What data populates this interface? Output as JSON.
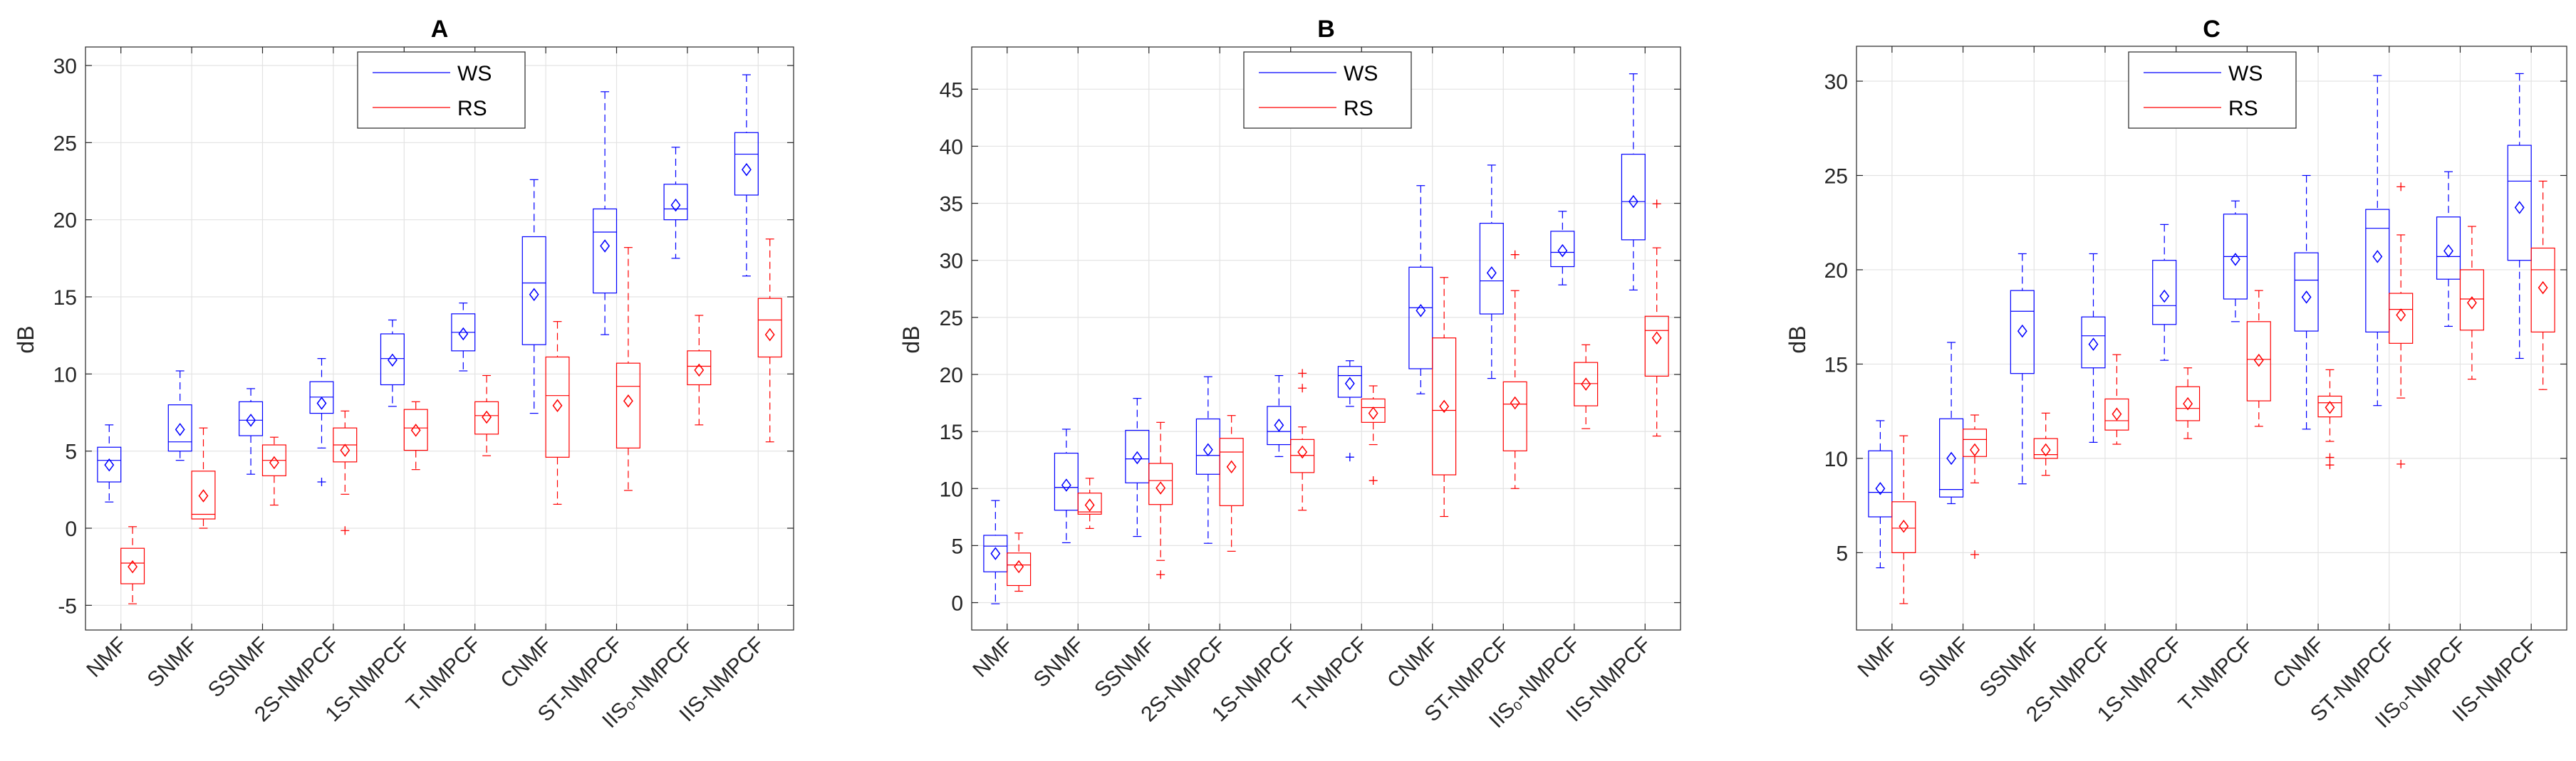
{
  "chart_data": [
    {
      "type": "box",
      "title": "A",
      "ylabel": "dB",
      "ylim": [
        -6.6,
        31.2
      ],
      "yticks": [
        -5,
        0,
        5,
        10,
        15,
        20,
        25,
        30
      ],
      "grid": true,
      "legend": "top-center",
      "categories": [
        "NMF",
        "SNMF",
        "SSNMF",
        "2S-NMPCF",
        "1S-NMPCF",
        "T-NMPCF",
        "CNMF",
        "ST-NMPCF",
        "IIS₀-NMPCF",
        "IIS-NMPCF"
      ],
      "series": [
        {
          "name": "WS",
          "color": "#0000ff",
          "boxes": [
            {
              "min": 1.7,
              "q1": 3.0,
              "median": 4.4,
              "q3": 5.25,
              "max": 6.7,
              "mean": 4.1,
              "outliers": []
            },
            {
              "min": 4.4,
              "q1": 5.0,
              "median": 5.6,
              "q3": 8.0,
              "max": 10.2,
              "mean": 6.4,
              "outliers": []
            },
            {
              "min": 3.5,
              "q1": 6.0,
              "median": 7.0,
              "q3": 8.2,
              "max": 9.05,
              "mean": 7.0,
              "outliers": []
            },
            {
              "min": 5.2,
              "q1": 7.45,
              "median": 8.5,
              "q3": 9.5,
              "max": 11.0,
              "mean": 8.1,
              "outliers": [
                3.0
              ]
            },
            {
              "min": 7.9,
              "q1": 9.3,
              "median": 11.0,
              "q3": 12.6,
              "max": 13.5,
              "mean": 10.9,
              "outliers": []
            },
            {
              "min": 10.2,
              "q1": 11.5,
              "median": 12.7,
              "q3": 13.9,
              "max": 14.6,
              "mean": 12.6,
              "outliers": []
            },
            {
              "min": 7.45,
              "q1": 11.9,
              "median": 15.9,
              "q3": 18.9,
              "max": 22.6,
              "mean": 15.15,
              "outliers": []
            },
            {
              "min": 12.55,
              "q1": 15.25,
              "median": 19.2,
              "q3": 20.7,
              "max": 28.3,
              "mean": 18.3,
              "outliers": []
            },
            {
              "min": 17.5,
              "q1": 20.0,
              "median": 20.7,
              "q3": 22.3,
              "max": 24.7,
              "mean": 20.95,
              "outliers": []
            },
            {
              "min": 16.35,
              "q1": 21.6,
              "median": 24.25,
              "q3": 25.65,
              "max": 29.4,
              "mean": 23.25,
              "outliers": []
            }
          ]
        },
        {
          "name": "RS",
          "color": "#ff0000",
          "boxes": [
            {
              "min": -4.9,
              "q1": -3.6,
              "median": -2.26,
              "q3": -1.3,
              "max": 0.1,
              "mean": -2.5,
              "outliers": []
            },
            {
              "min": 0.0,
              "q1": 0.6,
              "median": 0.9,
              "q3": 3.7,
              "max": 6.5,
              "mean": 2.1,
              "outliers": []
            },
            {
              "min": 1.5,
              "q1": 3.4,
              "median": 4.4,
              "q3": 5.4,
              "max": 5.9,
              "mean": 4.25,
              "outliers": []
            },
            {
              "min": 2.2,
              "q1": 4.3,
              "median": 5.4,
              "q3": 6.5,
              "max": 7.6,
              "mean": 5.05,
              "outliers": [
                -0.15
              ]
            },
            {
              "min": 3.8,
              "q1": 5.05,
              "median": 6.5,
              "q3": 7.7,
              "max": 8.2,
              "mean": 6.35,
              "outliers": []
            },
            {
              "min": 4.7,
              "q1": 6.1,
              "median": 7.3,
              "q3": 8.2,
              "max": 9.9,
              "mean": 7.2,
              "outliers": []
            },
            {
              "min": 1.55,
              "q1": 4.6,
              "median": 8.6,
              "q3": 11.1,
              "max": 13.4,
              "mean": 7.95,
              "outliers": []
            },
            {
              "min": 2.45,
              "q1": 5.2,
              "median": 9.2,
              "q3": 10.7,
              "max": 18.2,
              "mean": 8.25,
              "outliers": []
            },
            {
              "min": 6.7,
              "q1": 9.3,
              "median": 10.5,
              "q3": 11.5,
              "max": 13.8,
              "mean": 10.25,
              "outliers": []
            },
            {
              "min": 5.6,
              "q1": 11.1,
              "median": 13.5,
              "q3": 14.9,
              "max": 18.75,
              "mean": 12.55,
              "outliers": []
            }
          ]
        }
      ]
    },
    {
      "type": "box",
      "title": "B",
      "ylabel": "dB",
      "ylim": [
        -2.4,
        48.7
      ],
      "yticks": [
        0,
        5,
        10,
        15,
        20,
        25,
        30,
        35,
        40,
        45
      ],
      "grid": true,
      "legend": "top-center",
      "categories": [
        "NMF",
        "SNMF",
        "SSNMF",
        "2S-NMPCF",
        "1S-NMPCF",
        "T-NMPCF",
        "CNMF",
        "ST-NMPCF",
        "IIS₀-NMPCF",
        "IIS-NMPCF"
      ],
      "series": [
        {
          "name": "WS",
          "color": "#0000ff",
          "boxes": [
            {
              "min": -0.1,
              "q1": 2.7,
              "median": 4.95,
              "q3": 5.9,
              "max": 8.95,
              "mean": 4.3,
              "outliers": []
            },
            {
              "min": 5.25,
              "q1": 8.1,
              "median": 10.1,
              "q3": 13.1,
              "max": 15.2,
              "mean": 10.3,
              "outliers": []
            },
            {
              "min": 5.8,
              "q1": 10.5,
              "median": 12.6,
              "q3": 15.1,
              "max": 17.9,
              "mean": 12.7,
              "outliers": []
            },
            {
              "min": 5.2,
              "q1": 11.25,
              "median": 12.9,
              "q3": 16.1,
              "max": 19.8,
              "mean": 13.4,
              "outliers": []
            },
            {
              "min": 12.8,
              "q1": 13.85,
              "median": 15.0,
              "q3": 17.2,
              "max": 19.9,
              "mean": 15.55,
              "outliers": []
            },
            {
              "min": 17.2,
              "q1": 18.0,
              "median": 19.9,
              "q3": 20.7,
              "max": 21.2,
              "mean": 19.2,
              "outliers": [
                12.75
              ]
            },
            {
              "min": 18.3,
              "q1": 20.5,
              "median": 25.85,
              "q3": 29.4,
              "max": 36.55,
              "mean": 25.6,
              "outliers": []
            },
            {
              "min": 19.65,
              "q1": 25.3,
              "median": 28.2,
              "q3": 33.25,
              "max": 38.35,
              "mean": 28.9,
              "outliers": []
            },
            {
              "min": 27.85,
              "q1": 29.45,
              "median": 30.7,
              "q3": 32.55,
              "max": 34.3,
              "mean": 30.85,
              "outliers": []
            },
            {
              "min": 27.4,
              "q1": 31.8,
              "median": 35.15,
              "q3": 39.3,
              "max": 46.35,
              "mean": 35.15,
              "outliers": []
            }
          ]
        },
        {
          "name": "RS",
          "color": "#ff0000",
          "boxes": [
            {
              "min": 1.0,
              "q1": 1.5,
              "median": 3.3,
              "q3": 4.35,
              "max": 6.1,
              "mean": 3.15,
              "outliers": []
            },
            {
              "min": 6.5,
              "q1": 7.75,
              "median": 7.95,
              "q3": 9.6,
              "max": 10.9,
              "mean": 8.55,
              "outliers": []
            },
            {
              "min": 3.7,
              "q1": 8.6,
              "median": 10.7,
              "q3": 12.2,
              "max": 15.8,
              "mean": 10.05,
              "outliers": [
                2.45
              ]
            },
            {
              "min": 4.5,
              "q1": 8.5,
              "median": 13.2,
              "q3": 14.4,
              "max": 16.4,
              "mean": 11.9,
              "outliers": []
            },
            {
              "min": 8.1,
              "q1": 11.4,
              "median": 12.9,
              "q3": 14.3,
              "max": 15.4,
              "mean": 13.2,
              "outliers": [
                20.1,
                18.8
              ]
            },
            {
              "min": 13.85,
              "q1": 15.8,
              "median": 17.1,
              "q3": 17.85,
              "max": 19.0,
              "mean": 16.6,
              "outliers": [
                10.7
              ]
            },
            {
              "min": 7.55,
              "q1": 11.2,
              "median": 16.85,
              "q3": 23.2,
              "max": 28.5,
              "mean": 17.2,
              "outliers": []
            },
            {
              "min": 10.0,
              "q1": 13.3,
              "median": 17.4,
              "q3": 19.35,
              "max": 27.35,
              "mean": 17.5,
              "outliers": [
                30.5
              ]
            },
            {
              "min": 15.25,
              "q1": 17.25,
              "median": 19.2,
              "q3": 21.05,
              "max": 22.6,
              "mean": 19.15,
              "outliers": []
            },
            {
              "min": 14.6,
              "q1": 19.85,
              "median": 23.85,
              "q3": 25.1,
              "max": 31.1,
              "mean": 23.2,
              "outliers": [
                34.95
              ]
            }
          ]
        }
      ]
    },
    {
      "type": "box",
      "title": "C",
      "ylabel": "dB",
      "ylim": [
        0.9,
        31.85
      ],
      "yticks": [
        5,
        10,
        15,
        20,
        25,
        30
      ],
      "grid": true,
      "legend": "top-center",
      "categories": [
        "NMF",
        "SNMF",
        "SSNMF",
        "2S-NMPCF",
        "1S-NMPCF",
        "T-NMPCF",
        "CNMF",
        "ST-NMPCF",
        "IIS₀-NMPCF",
        "IIS-NMPCF"
      ],
      "series": [
        {
          "name": "WS",
          "color": "#0000ff",
          "boxes": [
            {
              "min": 4.2,
              "q1": 6.9,
              "median": 8.2,
              "q3": 10.4,
              "max": 12.0,
              "mean": 8.4,
              "outliers": []
            },
            {
              "min": 7.6,
              "q1": 7.95,
              "median": 8.35,
              "q3": 12.1,
              "max": 16.15,
              "mean": 10.0,
              "outliers": []
            },
            {
              "min": 8.65,
              "q1": 14.5,
              "median": 17.8,
              "q3": 18.9,
              "max": 20.85,
              "mean": 16.75,
              "outliers": []
            },
            {
              "min": 10.85,
              "q1": 14.8,
              "median": 16.5,
              "q3": 17.5,
              "max": 20.85,
              "mean": 16.05,
              "outliers": []
            },
            {
              "min": 15.2,
              "q1": 17.1,
              "median": 18.1,
              "q3": 20.5,
              "max": 22.4,
              "mean": 18.6,
              "outliers": []
            },
            {
              "min": 17.25,
              "q1": 18.45,
              "median": 20.7,
              "q3": 22.95,
              "max": 23.65,
              "mean": 20.55,
              "outliers": []
            },
            {
              "min": 11.55,
              "q1": 16.75,
              "median": 19.45,
              "q3": 20.9,
              "max": 25.0,
              "mean": 18.55,
              "outliers": []
            },
            {
              "min": 12.8,
              "q1": 16.7,
              "median": 22.2,
              "q3": 23.2,
              "max": 30.3,
              "mean": 20.7,
              "outliers": []
            },
            {
              "min": 17.0,
              "q1": 19.5,
              "median": 20.7,
              "q3": 22.8,
              "max": 25.2,
              "mean": 21.0,
              "outliers": []
            },
            {
              "min": 15.3,
              "q1": 20.5,
              "median": 24.7,
              "q3": 26.6,
              "max": 30.4,
              "mean": 23.3,
              "outliers": []
            }
          ]
        },
        {
          "name": "RS",
          "color": "#ff0000",
          "boxes": [
            {
              "min": 2.3,
              "q1": 5.0,
              "median": 6.3,
              "q3": 7.7,
              "max": 11.2,
              "mean": 6.4,
              "outliers": []
            },
            {
              "min": 8.7,
              "q1": 10.1,
              "median": 11.0,
              "q3": 11.55,
              "max": 12.3,
              "mean": 10.45,
              "outliers": [
                4.9
              ]
            },
            {
              "min": 9.1,
              "q1": 10.0,
              "median": 10.2,
              "q3": 11.05,
              "max": 12.4,
              "mean": 10.45,
              "outliers": []
            },
            {
              "min": 10.75,
              "q1": 11.5,
              "median": 12.0,
              "q3": 13.15,
              "max": 15.5,
              "mean": 12.35,
              "outliers": []
            },
            {
              "min": 11.05,
              "q1": 12.0,
              "median": 12.65,
              "q3": 13.8,
              "max": 14.8,
              "mean": 12.9,
              "outliers": []
            },
            {
              "min": 11.7,
              "q1": 13.05,
              "median": 15.25,
              "q3": 17.25,
              "max": 18.9,
              "mean": 15.2,
              "outliers": []
            },
            {
              "min": 10.9,
              "q1": 12.2,
              "median": 12.95,
              "q3": 13.3,
              "max": 14.7,
              "mean": 12.7,
              "outliers": [
                10.05,
                9.65
              ]
            },
            {
              "min": 13.2,
              "q1": 16.1,
              "median": 17.9,
              "q3": 18.75,
              "max": 21.85,
              "mean": 17.6,
              "outliers": [
                24.4,
                9.7
              ]
            },
            {
              "min": 14.2,
              "q1": 16.8,
              "median": 18.45,
              "q3": 20.0,
              "max": 22.3,
              "mean": 18.25,
              "outliers": []
            },
            {
              "min": 13.65,
              "q1": 16.7,
              "median": 20.0,
              "q3": 21.15,
              "max": 24.7,
              "mean": 19.05,
              "outliers": []
            }
          ]
        }
      ]
    }
  ]
}
